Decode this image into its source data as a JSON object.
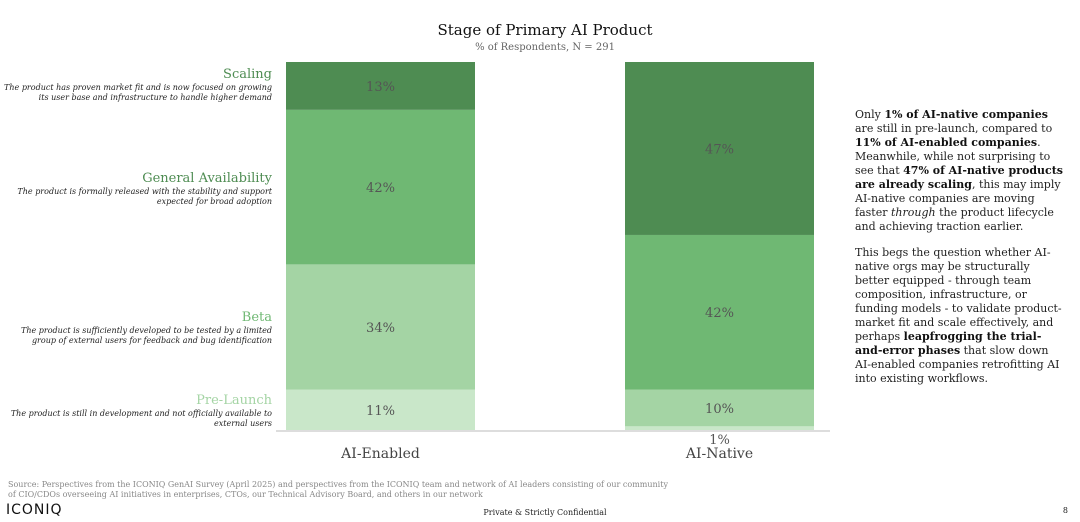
{
  "chart_data": {
    "type": "bar",
    "stacked": true,
    "title": "Stage of Primary AI Product",
    "subtitle": "% of Respondents, N = 291",
    "categories": [
      "AI-Enabled",
      "AI-Native"
    ],
    "series": [
      {
        "name": "Pre-Launch",
        "values": [
          11,
          1
        ],
        "labels": [
          "11%",
          "1%"
        ],
        "color": "#c9e7c9"
      },
      {
        "name": "Beta",
        "values": [
          34,
          10
        ],
        "labels": [
          "34%",
          "10%"
        ],
        "color": "#a4d4a4"
      },
      {
        "name": "General Availability",
        "values": [
          42,
          42
        ],
        "labels": [
          "42%",
          "42%"
        ],
        "color": "#6fb873"
      },
      {
        "name": "Scaling",
        "values": [
          13,
          47
        ],
        "labels": [
          "13%",
          "47%"
        ],
        "color": "#4e8c52"
      }
    ],
    "ylim": [
      0,
      100
    ]
  },
  "stages": [
    {
      "name": "Scaling",
      "description": "The product has proven market fit and is now focused on growing its user base and infrastructure to handle higher demand",
      "color": "#4e8c52"
    },
    {
      "name": "General Availability",
      "description": "The product is formally released with the stability and support expected for broad adoption",
      "color": "#4e8c52"
    },
    {
      "name": "Beta",
      "description": "The product is sufficiently developed to be tested by a limited group of external users for feedback and bug identification",
      "color": "#6fb873"
    },
    {
      "name": "Pre-Launch",
      "description": "The product is still in development and not officially available to external users",
      "color": "#a4d4a4"
    }
  ],
  "commentary": {
    "p1": {
      "t1": "Only ",
      "b1": "1% of AI-native companies",
      "t2": " are still in pre-launch, compared to ",
      "b2": "11% of AI-enabled companies",
      "t3": ". Meanwhile, while not surprising to see that ",
      "b3": "47% of AI-native products are already scaling",
      "t4": ", this may imply AI-native companies are moving faster ",
      "i1": "through",
      "t5": " the product lifecycle and achieving traction earlier."
    },
    "p2": {
      "t1": "This begs the question whether AI-native orgs may be structurally better equipped - through team composition, infrastructure, or funding models - to validate product-market fit and scale effectively, and perhaps ",
      "b1": "leapfrogging the trial-and-error phases",
      "t2": " that slow down AI-enabled companies retrofitting AI into existing workflows."
    }
  },
  "footer": {
    "source": "Source: Perspectives from the ICONIQ GenAI Survey (April 2025) and perspectives from the ICONIQ team and network of AI leaders consisting of our community of CIO/CDOs overseeing AI initiatives in enterprises, CTOs, our Technical Advisory Board, and others in our network",
    "logo": "ICONIQ",
    "confidential": "Private & Strictly Confidential",
    "page_number": "8"
  }
}
